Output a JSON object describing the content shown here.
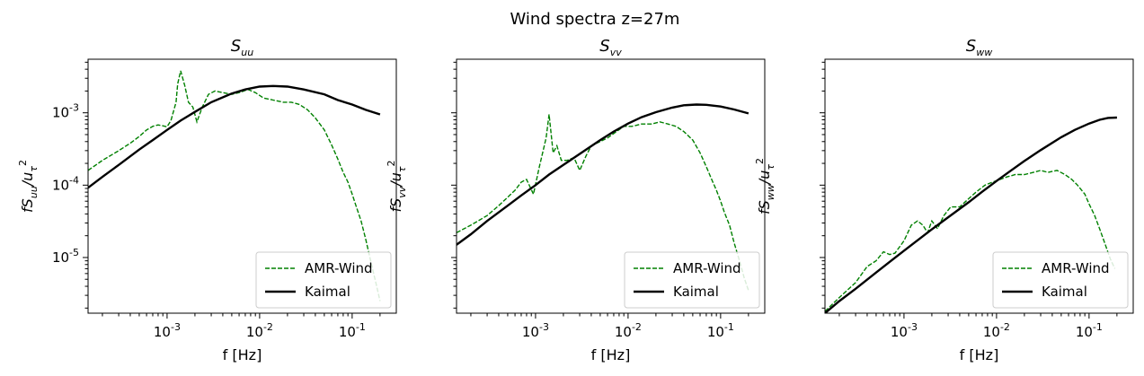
{
  "figure": {
    "suptitle": "Wind spectra z=27m"
  },
  "chart_data": [
    {
      "type": "line",
      "title": "S_uu",
      "title_base": "S",
      "title_sub": "uu",
      "xlabel": "f [Hz]",
      "ylabel": "fS_uu/u_τ^2",
      "xscale": "log",
      "yscale": "log",
      "xlim": [
        0.00014,
        0.3
      ],
      "ylim": [
        1.7e-06,
        0.0055
      ],
      "x_ticks": [
        "10^-3",
        "10^-2",
        "10^-1"
      ],
      "y_ticks": [
        "10^-5",
        "10^-4",
        "10^-3"
      ],
      "legend": "lower-right",
      "series": [
        {
          "name": "AMR-Wind",
          "style": "dashed",
          "color": "#008000",
          "x": [
            0.00014,
            0.0002,
            0.0003,
            0.0004,
            0.0005,
            0.0006,
            0.0007,
            0.0008,
            0.0009,
            0.001,
            0.0011,
            0.00125,
            0.0013,
            0.0014,
            0.00155,
            0.0017,
            0.0019,
            0.0021,
            0.0024,
            0.0028,
            0.0033,
            0.004,
            0.005,
            0.006,
            0.0075,
            0.009,
            0.011,
            0.014,
            0.018,
            0.022,
            0.027,
            0.033,
            0.04,
            0.05,
            0.06,
            0.07,
            0.08,
            0.09,
            0.1,
            0.11,
            0.125,
            0.14,
            0.16,
            0.18,
            0.2
          ],
          "y": [
            0.00016,
            0.00022,
            0.0003,
            0.00038,
            0.00047,
            0.00058,
            0.00065,
            0.00068,
            0.00066,
            0.00064,
            0.00078,
            0.0014,
            0.0025,
            0.0038,
            0.0024,
            0.0014,
            0.0012,
            0.00075,
            0.0012,
            0.0018,
            0.002,
            0.0019,
            0.0018,
            0.0019,
            0.0021,
            0.0019,
            0.0016,
            0.0015,
            0.0014,
            0.0014,
            0.0013,
            0.0011,
            0.00085,
            0.00058,
            0.00036,
            0.00023,
            0.00015,
            0.00011,
            7.5e-05,
            5.2e-05,
            3.2e-05,
            1.8e-05,
            8.5e-06,
            4.5e-06,
            2.5e-06
          ]
        },
        {
          "name": "Kaimal",
          "style": "solid",
          "color": "#000000",
          "x": [
            0.00014,
            0.0002,
            0.0003,
            0.0005,
            0.0007,
            0.001,
            0.0014,
            0.002,
            0.003,
            0.005,
            0.007,
            0.01,
            0.014,
            0.02,
            0.03,
            0.05,
            0.07,
            0.1,
            0.14,
            0.2
          ],
          "y": [
            9.2e-05,
            0.00013,
            0.00019,
            0.00031,
            0.00042,
            0.00058,
            0.00078,
            0.00103,
            0.0014,
            0.00185,
            0.0021,
            0.0023,
            0.00235,
            0.0023,
            0.0021,
            0.0018,
            0.0015,
            0.0013,
            0.0011,
            0.00095
          ]
        }
      ]
    },
    {
      "type": "line",
      "title": "S_vv",
      "title_base": "S",
      "title_sub": "vv",
      "xlabel": "f [Hz]",
      "ylabel": "fS_vv/u_τ^2",
      "xscale": "log",
      "yscale": "log",
      "xlim": [
        0.00014,
        0.3
      ],
      "ylim": [
        1.7e-06,
        0.0055
      ],
      "x_ticks": [
        "10^-3",
        "10^-2",
        "10^-1"
      ],
      "y_ticks": [],
      "legend": "lower-right",
      "series": [
        {
          "name": "AMR-Wind",
          "style": "dashed",
          "color": "#008000",
          "x": [
            0.00014,
            0.0002,
            0.0003,
            0.0004,
            0.0005,
            0.0006,
            0.0007,
            0.0008,
            0.00095,
            0.0011,
            0.0013,
            0.0014,
            0.00155,
            0.0017,
            0.0019,
            0.0022,
            0.0026,
            0.003,
            0.0035,
            0.004,
            0.005,
            0.006,
            0.0075,
            0.009,
            0.011,
            0.014,
            0.018,
            0.022,
            0.027,
            0.033,
            0.04,
            0.05,
            0.06,
            0.07,
            0.08,
            0.09,
            0.1,
            0.11,
            0.125,
            0.14,
            0.16,
            0.18,
            0.2
          ],
          "y": [
            2.2e-05,
            2.8e-05,
            3.8e-05,
            5.2e-05,
            6.8e-05,
            8.5e-05,
            0.00011,
            0.00012,
            7.5e-05,
            0.00018,
            0.00045,
            0.00095,
            0.00028,
            0.00035,
            0.00022,
            0.00022,
            0.00024,
            0.00016,
            0.00025,
            0.00035,
            0.0004,
            0.00045,
            0.00055,
            0.00065,
            0.00065,
            0.0007,
            0.0007,
            0.00075,
            0.0007,
            0.00065,
            0.00055,
            0.00042,
            0.00028,
            0.00018,
            0.00012,
            8.5e-05,
            6e-05,
            4.2e-05,
            2.8e-05,
            1.6e-05,
            9e-06,
            5.2e-06,
            3.5e-06
          ]
        },
        {
          "name": "Kaimal",
          "style": "solid",
          "color": "#000000",
          "x": [
            0.00014,
            0.0002,
            0.0003,
            0.0005,
            0.0007,
            0.001,
            0.0014,
            0.002,
            0.003,
            0.005,
            0.007,
            0.01,
            0.014,
            0.02,
            0.03,
            0.04,
            0.055,
            0.07,
            0.1,
            0.14,
            0.2
          ],
          "y": [
            1.5e-05,
            2.1e-05,
            3.2e-05,
            5.2e-05,
            7.2e-05,
            0.0001,
            0.00014,
            0.00019,
            0.00027,
            0.00042,
            0.00055,
            0.00071,
            0.00087,
            0.00102,
            0.00118,
            0.00127,
            0.0013,
            0.00129,
            0.00122,
            0.00111,
            0.00098
          ]
        }
      ]
    },
    {
      "type": "line",
      "title": "S_ww",
      "title_base": "S",
      "title_sub": "ww",
      "xlabel": "f [Hz]",
      "ylabel": "fS_ww/u_τ^2",
      "xscale": "log",
      "yscale": "log",
      "xlim": [
        0.00014,
        0.3
      ],
      "ylim": [
        1.7e-06,
        0.0055
      ],
      "x_ticks": [
        "10^-3",
        "10^-2",
        "10^-1"
      ],
      "y_ticks": [],
      "legend": "lower-right",
      "series": [
        {
          "name": "AMR-Wind",
          "style": "dashed",
          "color": "#008000",
          "x": [
            0.00014,
            0.0002,
            0.0003,
            0.0004,
            0.0005,
            0.0006,
            0.0007,
            0.0008,
            0.001,
            0.0012,
            0.0014,
            0.0016,
            0.0018,
            0.002,
            0.0023,
            0.0027,
            0.0032,
            0.004,
            0.005,
            0.006,
            0.0075,
            0.009,
            0.011,
            0.013,
            0.016,
            0.02,
            0.025,
            0.03,
            0.036,
            0.045,
            0.055,
            0.065,
            0.075,
            0.09,
            0.1,
            0.115,
            0.13,
            0.15,
            0.17,
            0.19
          ],
          "y": [
            1.8e-06,
            2.8e-06,
            4.5e-06,
            7.5e-06,
            9e-06,
            1.2e-05,
            1.1e-05,
            1.15e-05,
            1.7e-05,
            2.8e-05,
            3.2e-05,
            2.8e-05,
            2.2e-05,
            3.2e-05,
            2.5e-05,
            3.8e-05,
            5e-05,
            5e-05,
            6.5e-05,
            8e-05,
            0.0001,
            0.00011,
            0.00012,
            0.00013,
            0.00014,
            0.00014,
            0.00015,
            0.00016,
            0.00015,
            0.00016,
            0.00014,
            0.00012,
            0.0001,
            7.5e-05,
            5.5e-05,
            3.8e-05,
            2.5e-05,
            1.5e-05,
            9.5e-06,
            7e-06
          ]
        },
        {
          "name": "Kaimal",
          "style": "solid",
          "color": "#000000",
          "x": [
            0.00014,
            0.0002,
            0.0003,
            0.0005,
            0.0007,
            0.001,
            0.0014,
            0.002,
            0.003,
            0.005,
            0.007,
            0.01,
            0.014,
            0.02,
            0.03,
            0.05,
            0.07,
            0.1,
            0.13,
            0.16,
            0.2
          ],
          "y": [
            1.7e-06,
            2.5e-06,
            3.7e-06,
            6.2e-06,
            8.7e-06,
            1.24e-05,
            1.73e-05,
            2.45e-05,
            3.6e-05,
            5.8e-05,
            8.1e-05,
            0.000114,
            0.000156,
            0.000216,
            0.000305,
            0.00046,
            0.00058,
            0.00071,
            0.0008,
            0.00085,
            0.00086
          ]
        }
      ]
    }
  ]
}
